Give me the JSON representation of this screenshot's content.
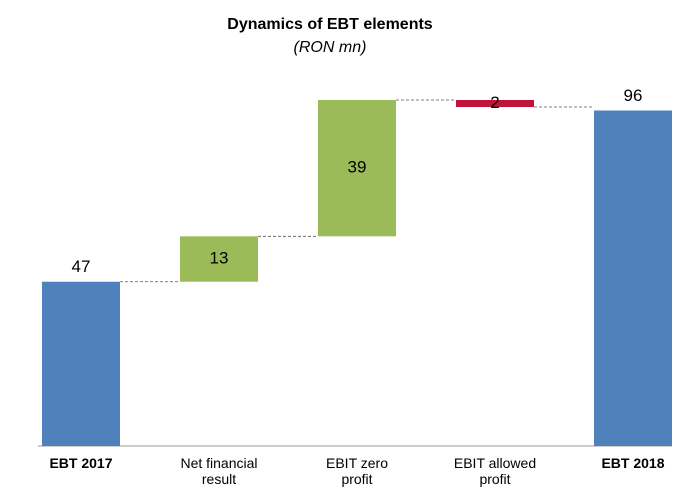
{
  "chart_data": {
    "type": "waterfall",
    "title": "Dynamics of EBT elements",
    "subtitle": "(RON mn)",
    "categories": [
      "EBT 2017",
      "Net financial result",
      "EBIT zero profit",
      "EBIT allowed profit",
      "EBT 2018"
    ],
    "values": [
      47,
      13,
      39,
      -2,
      96
    ],
    "value_labels": [
      "47",
      "13",
      "39",
      "2",
      "96"
    ],
    "measures": [
      "total",
      "relative",
      "relative",
      "relative",
      "total"
    ],
    "colors": [
      "#4f81bd",
      "#9bbb59",
      "#9bbb59",
      "#c0143c",
      "#4f81bd"
    ]
  }
}
